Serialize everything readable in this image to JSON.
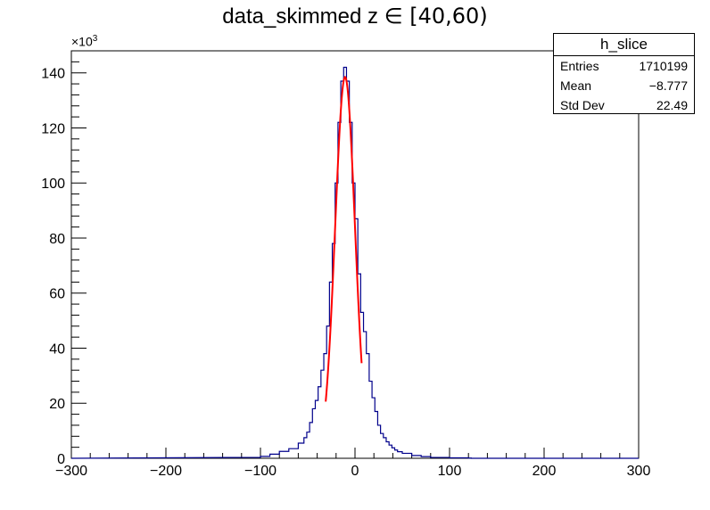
{
  "chart_data": {
    "type": "histogram",
    "title_text": "data_skimmed z",
    "title_range": "∈ [40,60)",
    "xlim": [
      -300,
      300
    ],
    "ylim": [
      0,
      148000
    ],
    "y_multiplier_label": "×10",
    "y_multiplier_exp": "3",
    "x_ticks": [
      "−300",
      "−200",
      "−100",
      "0",
      "100",
      "200",
      "300"
    ],
    "y_ticks": [
      "0",
      "20",
      "40",
      "60",
      "80",
      "100",
      "120",
      "140"
    ],
    "bin_width": 3,
    "bins": [
      {
        "x": -120,
        "y": 300
      },
      {
        "x": -100,
        "y": 700
      },
      {
        "x": -90,
        "y": 1500
      },
      {
        "x": -80,
        "y": 2500
      },
      {
        "x": -70,
        "y": 3500
      },
      {
        "x": -60,
        "y": 5500
      },
      {
        "x": -54,
        "y": 7500
      },
      {
        "x": -51,
        "y": 9500
      },
      {
        "x": -48,
        "y": 13000
      },
      {
        "x": -45,
        "y": 18000
      },
      {
        "x": -42,
        "y": 21000
      },
      {
        "x": -39,
        "y": 26000
      },
      {
        "x": -36,
        "y": 32000
      },
      {
        "x": -33,
        "y": 38000
      },
      {
        "x": -30,
        "y": 48000
      },
      {
        "x": -27,
        "y": 64000
      },
      {
        "x": -24,
        "y": 78000
      },
      {
        "x": -21,
        "y": 100000
      },
      {
        "x": -18,
        "y": 122000
      },
      {
        "x": -15,
        "y": 137000
      },
      {
        "x": -12,
        "y": 142000
      },
      {
        "x": -9,
        "y": 137000
      },
      {
        "x": -6,
        "y": 122000
      },
      {
        "x": -3,
        "y": 100000
      },
      {
        "x": 0,
        "y": 87000
      },
      {
        "x": 3,
        "y": 67000
      },
      {
        "x": 6,
        "y": 53000
      },
      {
        "x": 9,
        "y": 46000
      },
      {
        "x": 12,
        "y": 38000
      },
      {
        "x": 15,
        "y": 28000
      },
      {
        "x": 18,
        "y": 22000
      },
      {
        "x": 21,
        "y": 17000
      },
      {
        "x": 24,
        "y": 12000
      },
      {
        "x": 27,
        "y": 9000
      },
      {
        "x": 30,
        "y": 7500
      },
      {
        "x": 33,
        "y": 6000
      },
      {
        "x": 36,
        "y": 4800
      },
      {
        "x": 39,
        "y": 3800
      },
      {
        "x": 42,
        "y": 3000
      },
      {
        "x": 45,
        "y": 2400
      },
      {
        "x": 50,
        "y": 1800
      },
      {
        "x": 60,
        "y": 1000
      },
      {
        "x": 70,
        "y": 600
      },
      {
        "x": 80,
        "y": 300
      },
      {
        "x": 100,
        "y": 150
      },
      {
        "x": 120,
        "y": 80
      }
    ],
    "fit": {
      "mean": -10.5,
      "sigma": 10.5,
      "amplitude": 138500,
      "range": [
        -31,
        7
      ]
    },
    "stats_box": {
      "name": "h_slice",
      "entries_label": "Entries",
      "entries_value": "1710199",
      "mean_label": "Mean",
      "mean_value": "−8.777",
      "stddev_label": "Std Dev",
      "stddev_value": "22.49"
    },
    "colors": {
      "histogram": "#00008b",
      "fit": "#ff0000",
      "axis": "#000000"
    }
  }
}
